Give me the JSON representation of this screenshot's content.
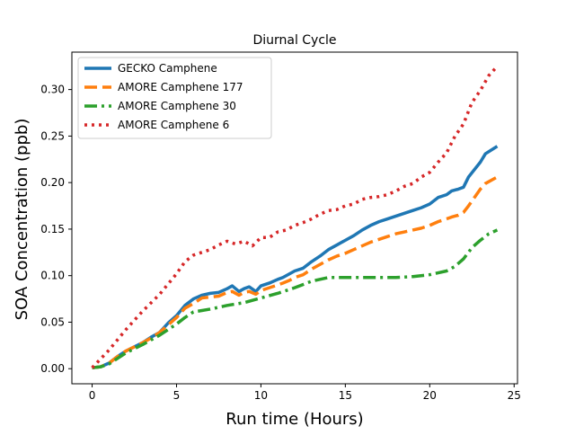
{
  "chart_data": {
    "type": "line",
    "title": "Diurnal Cycle",
    "xlabel": "Run time (Hours)",
    "ylabel": "SOA Concentration (ppb)",
    "xlim": [
      -1.2,
      25.2
    ],
    "ylim": [
      -0.0162,
      0.3402
    ],
    "xticks": [
      0,
      5,
      10,
      15,
      20,
      25
    ],
    "yticks": [
      0.0,
      0.05,
      0.1,
      0.15,
      0.2,
      0.25,
      0.3
    ],
    "ytick_format": 2,
    "grid": false,
    "legend": "top-left",
    "series": [
      {
        "name": "GECKO Camphene",
        "color": "#1f77b4",
        "style": "solid",
        "x": [
          0,
          0.5,
          1,
          1.5,
          2,
          3,
          3.5,
          4,
          4.5,
          5,
          5.5,
          6,
          6.5,
          7,
          7.5,
          8,
          8.3,
          8.7,
          9,
          9.3,
          9.7,
          10,
          10.5,
          11,
          11.3,
          11.7,
          12,
          12.5,
          13,
          13.5,
          14,
          14.5,
          15,
          15.5,
          16,
          16.5,
          17,
          17.5,
          18,
          18.5,
          19,
          19.5,
          20,
          20.5,
          21,
          21.3,
          21.7,
          22,
          22.3,
          23,
          23.3,
          24
        ],
        "y": [
          0.001,
          0.002,
          0.006,
          0.013,
          0.019,
          0.028,
          0.034,
          0.039,
          0.049,
          0.057,
          0.068,
          0.075,
          0.079,
          0.081,
          0.082,
          0.086,
          0.089,
          0.083,
          0.086,
          0.088,
          0.083,
          0.089,
          0.092,
          0.096,
          0.098,
          0.102,
          0.105,
          0.108,
          0.115,
          0.121,
          0.128,
          0.133,
          0.138,
          0.143,
          0.149,
          0.154,
          0.158,
          0.161,
          0.164,
          0.167,
          0.17,
          0.173,
          0.177,
          0.184,
          0.187,
          0.191,
          0.193,
          0.195,
          0.206,
          0.222,
          0.231,
          0.239
        ]
      },
      {
        "name": "AMORE Camphene 177",
        "color": "#ff7f0e",
        "style": "dashed",
        "x": [
          0,
          0.5,
          1,
          1.5,
          2,
          3,
          3.5,
          4,
          4.5,
          5,
          5.5,
          6,
          6.5,
          7,
          7.5,
          8,
          8.3,
          8.7,
          9,
          9.3,
          9.7,
          10,
          10.5,
          11,
          11.3,
          11.7,
          12,
          12.5,
          13,
          13.5,
          14,
          14.5,
          15,
          15.5,
          16,
          16.5,
          17,
          17.5,
          18,
          18.5,
          19,
          19.5,
          20,
          20.5,
          21,
          21.3,
          21.7,
          22,
          22.3,
          23,
          23.3,
          24
        ],
        "y": [
          0.001,
          0.002,
          0.006,
          0.013,
          0.019,
          0.028,
          0.033,
          0.039,
          0.047,
          0.055,
          0.065,
          0.07,
          0.076,
          0.077,
          0.078,
          0.082,
          0.083,
          0.079,
          0.082,
          0.083,
          0.08,
          0.084,
          0.087,
          0.09,
          0.092,
          0.095,
          0.098,
          0.101,
          0.107,
          0.112,
          0.117,
          0.121,
          0.124,
          0.128,
          0.132,
          0.136,
          0.139,
          0.142,
          0.145,
          0.147,
          0.149,
          0.151,
          0.154,
          0.158,
          0.161,
          0.163,
          0.165,
          0.168,
          0.175,
          0.193,
          0.199,
          0.206
        ]
      },
      {
        "name": "AMORE Camphene 30",
        "color": "#2ca02c",
        "style": "dashdot",
        "x": [
          0,
          0.5,
          1,
          1.5,
          2,
          3,
          3.5,
          4,
          4.5,
          5,
          5.5,
          6,
          7,
          8,
          9,
          10,
          11,
          12,
          13,
          14,
          15,
          16,
          17,
          18,
          19,
          20,
          20.5,
          21,
          21.5,
          22,
          22.5,
          23,
          23.5,
          24
        ],
        "y": [
          0.001,
          0.002,
          0.005,
          0.011,
          0.017,
          0.026,
          0.031,
          0.036,
          0.042,
          0.048,
          0.055,
          0.061,
          0.064,
          0.068,
          0.071,
          0.076,
          0.081,
          0.087,
          0.094,
          0.098,
          0.098,
          0.098,
          0.098,
          0.098,
          0.099,
          0.101,
          0.103,
          0.105,
          0.11,
          0.118,
          0.13,
          0.138,
          0.145,
          0.149
        ]
      },
      {
        "name": "AMORE Camphene 6",
        "color": "#d62728",
        "style": "dotted",
        "x": [
          0,
          1,
          2,
          3,
          4,
          5,
          5.5,
          6,
          6.5,
          7,
          7.5,
          8,
          8.5,
          9,
          9.5,
          10,
          10.5,
          11,
          11.5,
          12,
          12.5,
          13,
          13.5,
          14,
          14.5,
          15,
          15.5,
          16,
          16.5,
          17,
          17.5,
          18,
          18.5,
          19,
          19.5,
          20,
          20.5,
          21,
          21.5,
          22,
          22.5,
          23,
          23.5,
          24
        ],
        "y": [
          0.001,
          0.02,
          0.042,
          0.062,
          0.08,
          0.102,
          0.115,
          0.122,
          0.125,
          0.128,
          0.133,
          0.137,
          0.134,
          0.137,
          0.132,
          0.141,
          0.141,
          0.147,
          0.149,
          0.154,
          0.157,
          0.161,
          0.166,
          0.17,
          0.171,
          0.175,
          0.177,
          0.182,
          0.184,
          0.185,
          0.187,
          0.191,
          0.196,
          0.199,
          0.206,
          0.211,
          0.222,
          0.232,
          0.25,
          0.263,
          0.286,
          0.299,
          0.315,
          0.325
        ]
      }
    ]
  }
}
